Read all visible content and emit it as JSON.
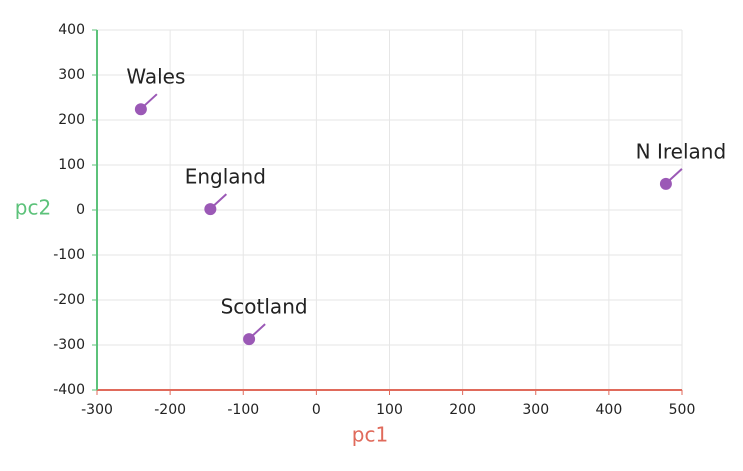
{
  "chart_data": {
    "type": "scatter",
    "x_label": "pc1",
    "y_label": "pc2",
    "x_axis_color": "#e06a5b",
    "y_axis_color": "#5cc27a",
    "x": [
      -240,
      -145,
      -92,
      478
    ],
    "series": [
      {
        "color": "#9b59b6",
        "values": [
          224,
          2,
          -287,
          58
        ]
      }
    ],
    "point_labels": [
      "Wales",
      "England",
      "Scotland",
      "N Ireland"
    ],
    "xlim": [
      -300,
      500
    ],
    "xticks": [
      -300,
      -200,
      -100,
      0,
      100,
      200,
      300,
      400,
      500
    ],
    "ylim": [
      -400,
      400
    ],
    "yticks": [
      -400,
      -300,
      -200,
      -100,
      0,
      100,
      200,
      300,
      400
    ],
    "grid": true
  }
}
